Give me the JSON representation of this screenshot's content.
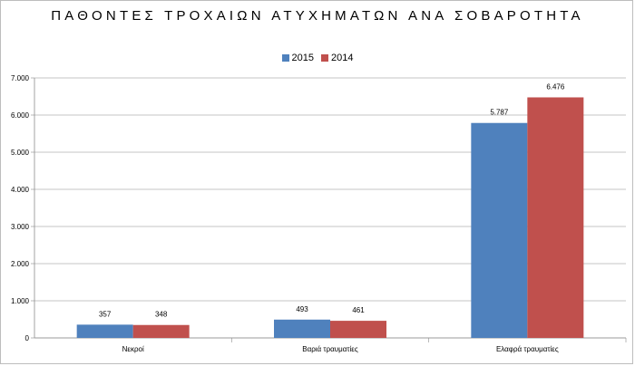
{
  "chart_data": {
    "type": "bar",
    "title": "ΠΑΘΟΝΤΕΣ ΤΡΟΧΑΙΩΝ ΑΤΥΧΗΜΑΤΩΝ ΑΝΑ ΣΟΒΑΡΟΤΗΤΑ",
    "categories": [
      "Νεκροί",
      "Βαριά τραυματίες",
      "Ελαφρά τραυματίες"
    ],
    "series": [
      {
        "name": "2015",
        "color": "#4f81bd",
        "values": [
          357,
          493,
          5787
        ],
        "labels": [
          "357",
          "493",
          "5.787"
        ]
      },
      {
        "name": "2014",
        "color": "#c0504d",
        "values": [
          348,
          461,
          6476
        ],
        "labels": [
          "348",
          "461",
          "6.476"
        ]
      }
    ],
    "ylim": [
      0,
      7000
    ],
    "yticks": [
      0,
      1000,
      2000,
      3000,
      4000,
      5000,
      6000,
      7000
    ],
    "ytick_labels": [
      "0",
      "1.000",
      "2.000",
      "3.000",
      "4.000",
      "5.000",
      "6.000",
      "7.000"
    ],
    "grid": true,
    "legend_position": "top-center",
    "xlabel": "",
    "ylabel": ""
  }
}
